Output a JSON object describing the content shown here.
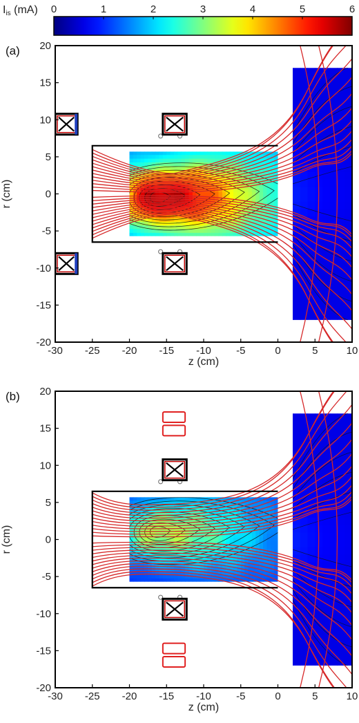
{
  "figure": {
    "colorbar": {
      "label_main": "I",
      "label_sub": "is",
      "label_unit": " (mA)",
      "ticks": [
        "0",
        "1",
        "2",
        "3",
        "4",
        "5",
        "6"
      ],
      "min": 0,
      "max": 6,
      "colormap": "jet"
    }
  },
  "chart_data": [
    {
      "type": "heatmap",
      "panel_label": "(a)",
      "xlabel": "z (cm)",
      "ylabel": "r (cm)",
      "xlim": [
        -30,
        10
      ],
      "ylim": [
        -20,
        20
      ],
      "x_ticks": [
        "-30",
        "-25",
        "-20",
        "-15",
        "-10",
        "-5",
        "0",
        "5",
        "10"
      ],
      "y_ticks": [
        "20",
        "15",
        "10",
        "5",
        "0",
        "-5",
        "-10",
        "-15",
        "-20"
      ],
      "grid": false,
      "peak": {
        "z": -16.5,
        "r": -0.5,
        "value": 5.8
      },
      "chamber_inner": {
        "z_range": [
          -20,
          0
        ],
        "r_range": [
          -5.7,
          5.7
        ],
        "value_edge": 1.5
      },
      "chamber_outer": {
        "z_range": [
          2,
          10
        ],
        "r_range": [
          -17,
          17
        ],
        "value": 0.6
      },
      "coils": [
        {
          "z": [
            -15.5,
            -12.3
          ],
          "r": [
            8,
            10.8
          ]
        },
        {
          "z": [
            -15.5,
            -12.3
          ],
          "r": [
            -10.8,
            -8
          ]
        },
        {
          "z": [
            -30,
            -27
          ],
          "r": [
            8,
            10.8
          ]
        },
        {
          "z": [
            -30,
            -27
          ],
          "r": [
            -10.8,
            -8
          ]
        }
      ],
      "probes": [
        {
          "z": -15.8,
          "r": 7.8
        },
        {
          "z": -13.2,
          "r": 7.8
        },
        {
          "z": -15.8,
          "r": -7.8
        },
        {
          "z": -13.2,
          "r": -7.8
        }
      ]
    },
    {
      "type": "heatmap",
      "panel_label": "(b)",
      "xlabel": "z (cm)",
      "ylabel": "r (cm)",
      "xlim": [
        -30,
        10
      ],
      "ylim": [
        -20,
        20
      ],
      "x_ticks": [
        "-30",
        "-25",
        "-20",
        "-15",
        "-10",
        "-5",
        "0",
        "5",
        "10"
      ],
      "y_ticks": [
        "20",
        "15",
        "10",
        "5",
        "0",
        "-5",
        "-10",
        "-15",
        "-20"
      ],
      "grid": false,
      "peak": {
        "z": -16.5,
        "r": 1.0,
        "value": 3.3
      },
      "chamber_inner": {
        "z_range": [
          -20,
          0
        ],
        "r_range": [
          -5.7,
          5.7
        ],
        "value_edge": 1.0
      },
      "chamber_outer": {
        "z_range": [
          2,
          10
        ],
        "r_range": [
          -17,
          17
        ],
        "value": 0.6
      },
      "coils": [
        {
          "z": [
            -15.5,
            -12.3
          ],
          "r": [
            8,
            10.8
          ]
        },
        {
          "z": [
            -15.5,
            -12.3
          ],
          "r": [
            -10.8,
            -8
          ]
        }
      ],
      "red_coils": [
        {
          "z": [
            -15.5,
            -12.5
          ],
          "r": [
            15.8,
            17.2
          ]
        },
        {
          "z": [
            -15.5,
            -12.5
          ],
          "r": [
            14.0,
            15.4
          ]
        },
        {
          "z": [
            -15.5,
            -12.5
          ],
          "r": [
            -15.4,
            -14.0
          ]
        },
        {
          "z": [
            -15.5,
            -12.5
          ],
          "r": [
            -17.2,
            -15.8
          ]
        }
      ],
      "probes": [
        {
          "z": -15.8,
          "r": 7.8
        },
        {
          "z": -13.2,
          "r": 7.8
        },
        {
          "z": -15.8,
          "r": -7.8
        },
        {
          "z": -13.2,
          "r": -7.8
        }
      ]
    }
  ]
}
